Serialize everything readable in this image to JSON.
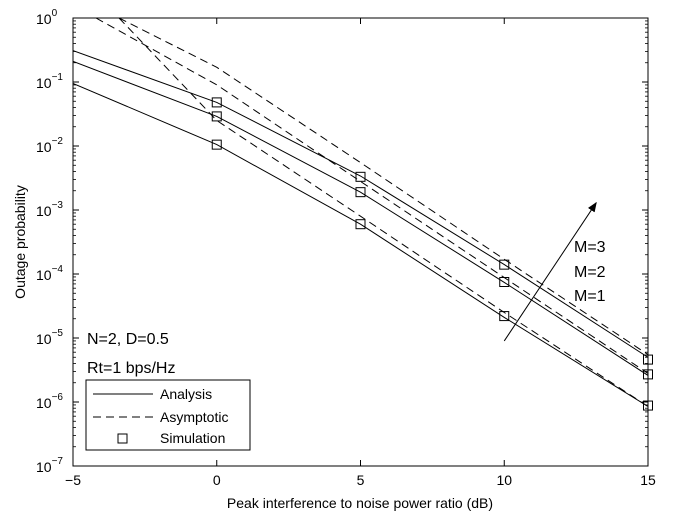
{
  "chart_data": {
    "type": "line",
    "xlabel": "Peak interference to noise power ratio (dB)",
    "ylabel": "Outage probability",
    "xlim": [
      -5,
      15
    ],
    "ylim": [
      1e-07,
      1
    ],
    "y_scale": "log",
    "grid": false,
    "x_ticks": [
      -5,
      0,
      5,
      10,
      15
    ],
    "x_tick_labels": [
      "−5",
      "0",
      "5",
      "10",
      "15"
    ],
    "y_ticks": [
      1e-07,
      1e-06,
      1e-05,
      0.0001,
      0.001,
      0.01,
      0.1,
      1
    ],
    "y_tick_labels": [
      {
        "base": "10",
        "exp": "−7"
      },
      {
        "base": "10",
        "exp": "−6"
      },
      {
        "base": "10",
        "exp": "−5"
      },
      {
        "base": "10",
        "exp": "−4"
      },
      {
        "base": "10",
        "exp": "−3"
      },
      {
        "base": "10",
        "exp": "−2"
      },
      {
        "base": "10",
        "exp": "−1"
      },
      {
        "base": "10",
        "exp": "0"
      }
    ],
    "series": [
      {
        "style": "solid",
        "group": "M=1",
        "x": [
          -5,
          0,
          5,
          10,
          15
        ],
        "y": [
          0.095,
          0.0105,
          0.0006,
          2.1e-05,
          8.5e-07
        ]
      },
      {
        "style": "solid",
        "group": "M=2",
        "x": [
          -5,
          0,
          5,
          10,
          15
        ],
        "y": [
          0.21,
          0.029,
          0.0019,
          7.4e-05,
          2.6e-06
        ]
      },
      {
        "style": "solid",
        "group": "M=3",
        "x": [
          -5,
          0,
          5,
          10,
          15
        ],
        "y": [
          0.31,
          0.048,
          0.0034,
          0.00014,
          5e-06
        ]
      },
      {
        "style": "dashed",
        "group": "M=1",
        "x": [
          -3.4,
          0,
          5,
          10,
          15
        ],
        "y": [
          1,
          0.025,
          0.0008,
          2.5e-05,
          8.5e-07
        ]
      },
      {
        "style": "dashed",
        "group": "M=2",
        "x": [
          -4.2,
          0,
          5,
          10,
          15
        ],
        "y": [
          1,
          0.09,
          0.0028,
          8.8e-05,
          2.8e-06
        ]
      },
      {
        "style": "dashed",
        "group": "M=3",
        "x": [
          -3.4,
          0,
          5,
          10,
          15
        ],
        "y": [
          1,
          0.17,
          0.0055,
          0.00017,
          5.5e-06
        ]
      },
      {
        "style": "square",
        "group": "M=1",
        "x": [
          0,
          5,
          10,
          15
        ],
        "y": [
          0.0105,
          0.0006,
          2.2e-05,
          8.8e-07
        ]
      },
      {
        "style": "square",
        "group": "M=2",
        "x": [
          0,
          5,
          10,
          15
        ],
        "y": [
          0.029,
          0.0019,
          7.5e-05,
          2.7e-06
        ]
      },
      {
        "style": "square",
        "group": "M=3",
        "x": [
          0,
          5,
          10,
          15
        ],
        "y": [
          0.048,
          0.0033,
          0.00014,
          4.6e-06
        ]
      }
    ],
    "legend": {
      "position": "bottom-left",
      "entries": [
        {
          "label": "Analysis",
          "style": "solid"
        },
        {
          "label": "Asymptotic",
          "style": "dashed"
        },
        {
          "label": "Simulation",
          "style": "square"
        }
      ]
    },
    "annotations": {
      "params_line1": "N=2, D=0.5",
      "params_line2": "Rt=1 bps/Hz",
      "arrow_labels": [
        "M=3",
        "M=2",
        "M=1"
      ],
      "arrow": {
        "from": [
          10,
          9e-06
        ],
        "to": [
          13.2,
          0.0013
        ]
      }
    }
  }
}
